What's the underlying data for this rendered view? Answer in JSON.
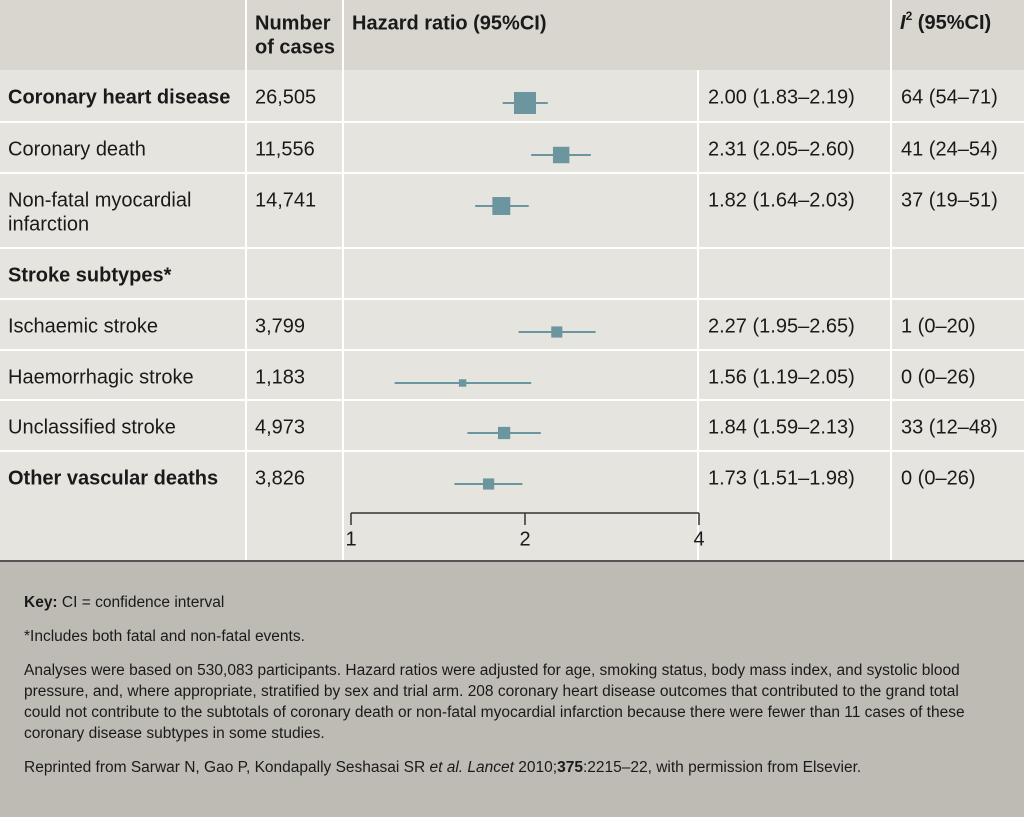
{
  "header": {
    "cases": [
      "Number",
      "of cases"
    ],
    "hr": "Hazard ratio (95%CI)",
    "i2": {
      "symbol": "I",
      "sup": "2",
      "text": " (95%CI)"
    }
  },
  "axis": {
    "scale": "log",
    "xlim": [
      1,
      4
    ],
    "xticks": [
      1,
      2,
      4
    ]
  },
  "marker_color": "#6b959f",
  "rows": [
    {
      "label": [
        "Coronary heart disease"
      ],
      "bold": true,
      "cases": {
        "value": 26505,
        "label": "26,505"
      },
      "hr": 2.0,
      "lo": 1.83,
      "hi": 2.19,
      "hr_label": "2.00 (1.83–2.19)",
      "i2_label": "64 (54–71)"
    },
    {
      "label": [
        "Coronary death"
      ],
      "cases": {
        "value": 11556,
        "label": "11,556"
      },
      "hr": 2.31,
      "lo": 2.05,
      "hi": 2.6,
      "hr_label": "2.31 (2.05–2.60)",
      "i2_label": "41 (24–54)"
    },
    {
      "label": [
        "Non-fatal myocardial",
        "infarction"
      ],
      "cases": {
        "value": 14741,
        "label": "14,741"
      },
      "hr": 1.82,
      "lo": 1.64,
      "hi": 2.03,
      "hr_label": "1.82 (1.64–2.03)",
      "i2_label": "37 (19–51)"
    },
    {
      "label": [
        "Stroke subtypes*"
      ],
      "bold": true
    },
    {
      "label": [
        "Ischaemic stroke"
      ],
      "cases": {
        "value": 3799,
        "label": "3,799"
      },
      "hr": 2.27,
      "lo": 1.95,
      "hi": 2.65,
      "hr_label": "2.27 (1.95–2.65)",
      "i2_label": "1 (0–20)"
    },
    {
      "label": [
        "Haemorrhagic stroke"
      ],
      "cases": {
        "value": 1183,
        "label": "1,183"
      },
      "hr": 1.56,
      "lo": 1.19,
      "hi": 2.05,
      "hr_label": "1.56 (1.19–2.05)",
      "i2_label": "0 (0–26)"
    },
    {
      "label": [
        "Unclassified stroke"
      ],
      "cases": {
        "value": 4973,
        "label": "4,973"
      },
      "hr": 1.84,
      "lo": 1.59,
      "hi": 2.13,
      "hr_label": "1.84 (1.59–2.13)",
      "i2_label": "33 (12–48)"
    },
    {
      "label": [
        "Other vascular deaths"
      ],
      "bold": true,
      "cases": {
        "value": 3826,
        "label": "3,826"
      },
      "hr": 1.73,
      "lo": 1.51,
      "hi": 1.98,
      "hr_label": "1.73 (1.51–1.98)",
      "i2_label": "0 (0–26)"
    }
  ],
  "footer": [
    [
      {
        "t": "Key:",
        "b": true
      },
      {
        "t": " CI = confidence interval"
      }
    ],
    [
      {
        "t": "*Includes both fatal and non-fatal events."
      }
    ],
    [
      {
        "t": "Analyses were based on 530,083 participants. Hazard ratios were adjusted for age, smoking status, body mass index, and systolic blood pressure, and, where appropriate, stratified by sex and trial arm. 208 coronary heart disease outcomes that contributed to the grand total could not contribute to the subtotals of coronary death or non-fatal myocardial infarction because there were fewer than 11 cases of these coronary disease subtypes in some studies."
      }
    ],
    [
      {
        "t": "Reprinted from Sarwar N, Gao P, Kondapally Seshasai SR "
      },
      {
        "t": "et al.",
        "i": true
      },
      {
        "t": " Lancet",
        "i": true
      },
      {
        "t": " 2010;"
      },
      {
        "t": "375",
        "b": true
      },
      {
        "t": ":2215–22, with permission from Elsevier."
      }
    ]
  ]
}
